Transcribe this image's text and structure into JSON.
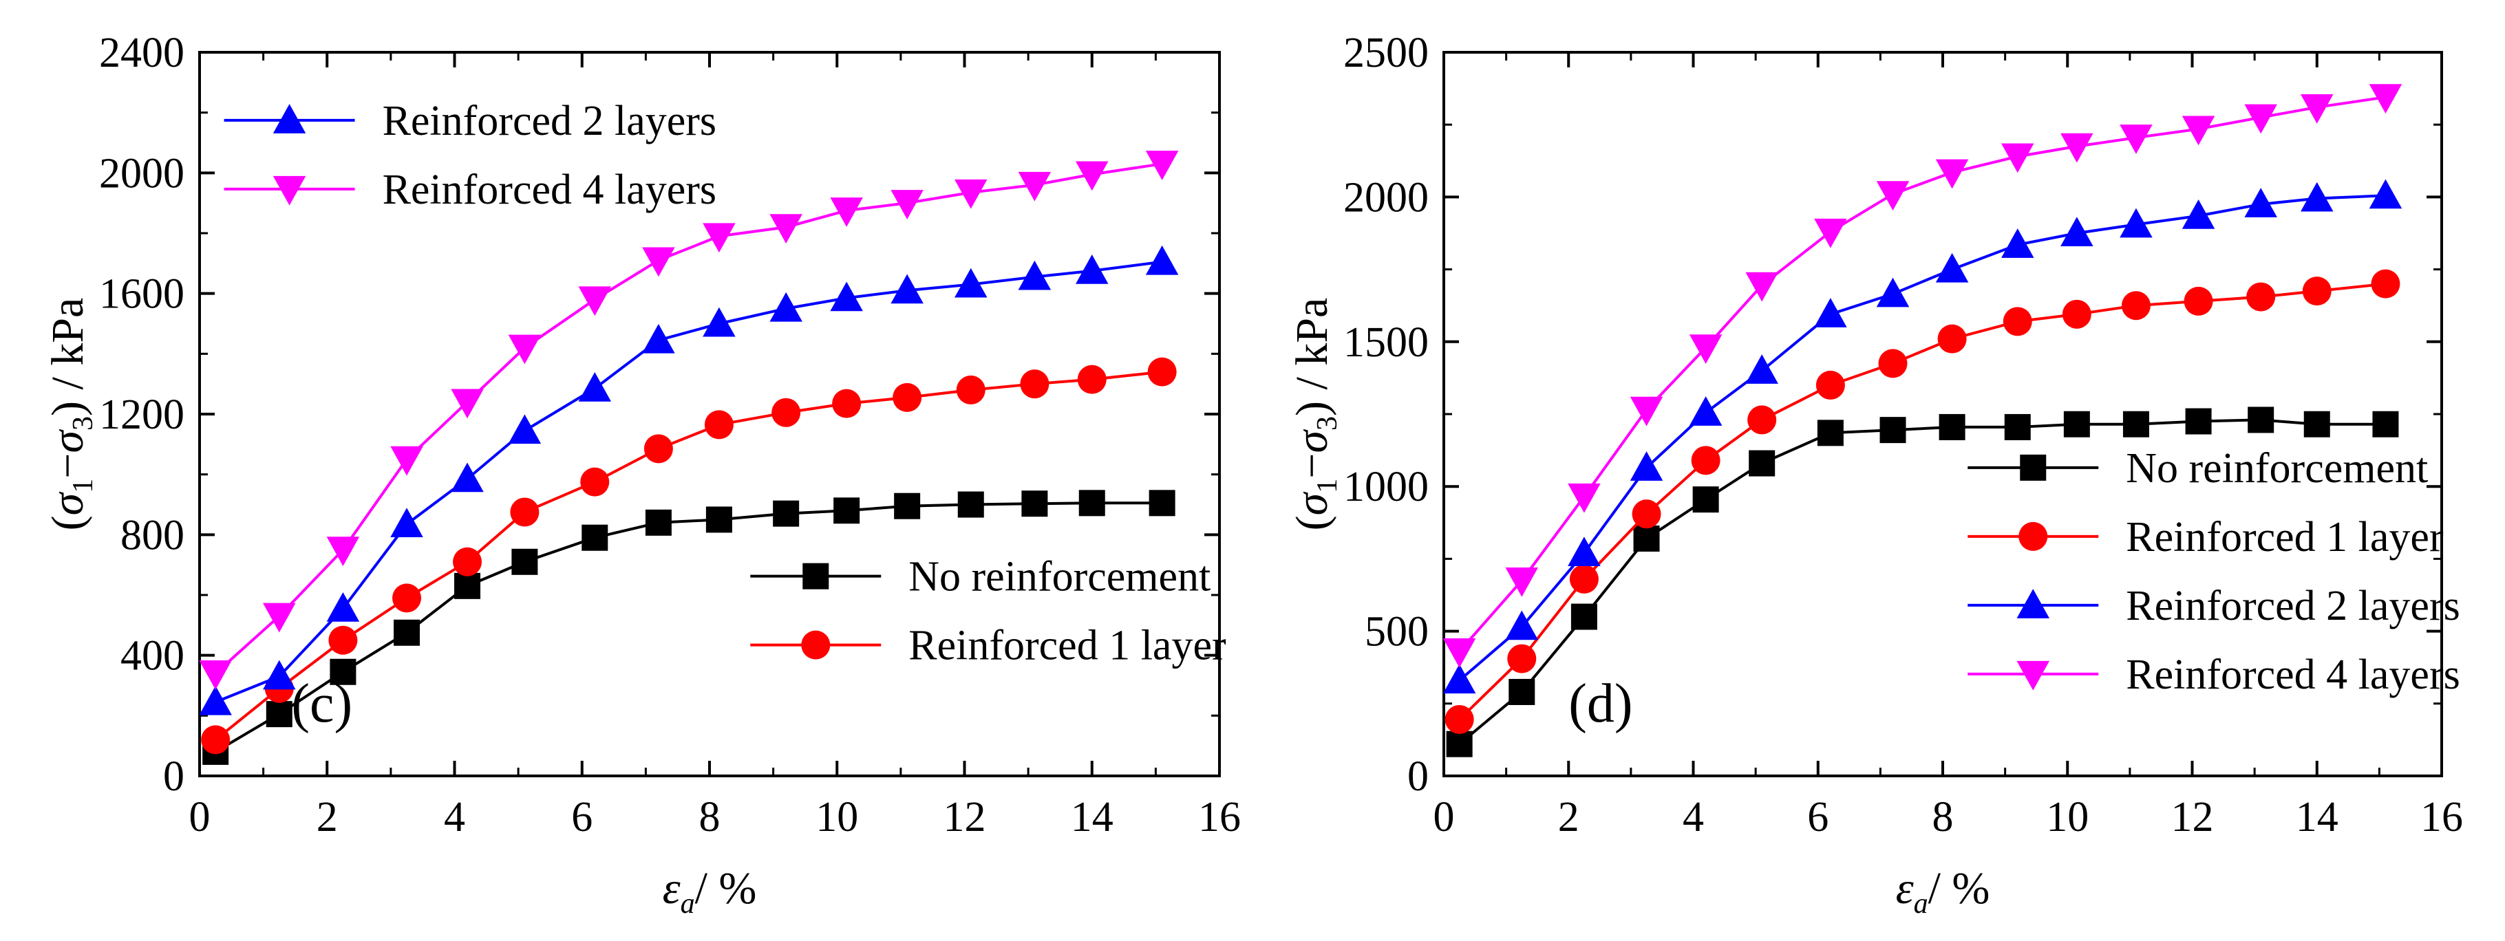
{
  "chart_data": [
    {
      "type": "line",
      "panel_label": "(c)",
      "xlabel": {
        "sym": "ε",
        "sub": "a",
        "unit": "/ %"
      },
      "ylabel": {
        "open": "(",
        "s1": "σ",
        "sub1": "1",
        "minus": "−",
        "s3": "σ",
        "sub3": "3",
        "close": ") / kPa"
      },
      "xlim": [
        0,
        16
      ],
      "ylim": [
        0,
        2400
      ],
      "xticks": [
        0,
        2,
        4,
        6,
        8,
        10,
        12,
        14,
        16
      ],
      "yticks": [
        0,
        400,
        800,
        1200,
        1600,
        2000,
        2400
      ],
      "x": [
        0.25,
        1.25,
        2.25,
        3.25,
        4.2,
        5.1,
        6.2,
        7.2,
        8.15,
        9.2,
        10.15,
        11.1,
        12.1,
        13.1,
        14.0,
        15.1
      ],
      "series": [
        {
          "name": "No reinforcement",
          "color": "#000000",
          "marker": "square",
          "values": [
            80,
            205,
            345,
            475,
            630,
            710,
            790,
            840,
            850,
            870,
            880,
            895,
            900,
            903,
            905,
            905
          ]
        },
        {
          "name": "Reinforced 1 layer",
          "color": "#ff0000",
          "marker": "circle",
          "values": [
            120,
            290,
            450,
            590,
            710,
            875,
            975,
            1085,
            1165,
            1205,
            1235,
            1255,
            1280,
            1300,
            1315,
            1340
          ]
        },
        {
          "name": "Reinforced 2 layers",
          "color": "#0000ff",
          "marker": "triangle-up",
          "values": [
            245,
            330,
            555,
            835,
            985,
            1145,
            1285,
            1445,
            1500,
            1550,
            1585,
            1610,
            1630,
            1655,
            1675,
            1705
          ]
        },
        {
          "name": "Reinforced 4 layers",
          "color": "#ff00ff",
          "marker": "triangle-down",
          "values": [
            340,
            530,
            750,
            1050,
            1240,
            1420,
            1580,
            1710,
            1790,
            1820,
            1875,
            1900,
            1935,
            1960,
            1995,
            2030
          ]
        }
      ],
      "legends": [
        {
          "position": "top-left",
          "series": [
            2,
            3
          ]
        },
        {
          "position": "bottom-right",
          "series": [
            0,
            1
          ]
        }
      ]
    },
    {
      "type": "line",
      "panel_label": "(d)",
      "xlabel": {
        "sym": "ε",
        "sub": "a",
        "unit": "/ %"
      },
      "ylabel": {
        "open": "(",
        "s1": "σ",
        "sub1": "1",
        "minus": "−",
        "s3": "σ",
        "sub3": "3",
        "close": ") / kPa"
      },
      "xlim": [
        0,
        16
      ],
      "ylim": [
        0,
        2500
      ],
      "xticks": [
        0,
        2,
        4,
        6,
        8,
        10,
        12,
        14,
        16
      ],
      "yticks": [
        0,
        500,
        1000,
        1500,
        2000,
        2500
      ],
      "x": [
        0.25,
        1.25,
        2.25,
        3.25,
        4.2,
        5.1,
        6.2,
        7.2,
        8.15,
        9.2,
        10.15,
        11.1,
        12.1,
        13.1,
        14.0,
        15.1
      ],
      "series": [
        {
          "name": "No reinforcement",
          "color": "#000000",
          "marker": "square",
          "values": [
            110,
            290,
            550,
            820,
            955,
            1080,
            1185,
            1195,
            1205,
            1205,
            1215,
            1215,
            1225,
            1230,
            1215,
            1215
          ]
        },
        {
          "name": "Reinforced 1 layer",
          "color": "#ff0000",
          "marker": "circle",
          "values": [
            195,
            405,
            680,
            905,
            1090,
            1230,
            1350,
            1425,
            1510,
            1570,
            1595,
            1625,
            1640,
            1655,
            1675,
            1700
          ]
        },
        {
          "name": "Reinforced 2 layers",
          "color": "#0000ff",
          "marker": "triangle-up",
          "values": [
            330,
            515,
            770,
            1065,
            1255,
            1400,
            1595,
            1665,
            1750,
            1835,
            1875,
            1905,
            1935,
            1975,
            1995,
            2005
          ]
        },
        {
          "name": "Reinforced 4 layers",
          "color": "#ff00ff",
          "marker": "triangle-down",
          "values": [
            430,
            675,
            965,
            1265,
            1480,
            1695,
            1880,
            2010,
            2085,
            2140,
            2175,
            2205,
            2235,
            2275,
            2310,
            2345
          ]
        }
      ],
      "legends": [
        {
          "position": "bottom-right",
          "series": [
            0,
            1,
            2,
            3
          ]
        }
      ]
    }
  ]
}
